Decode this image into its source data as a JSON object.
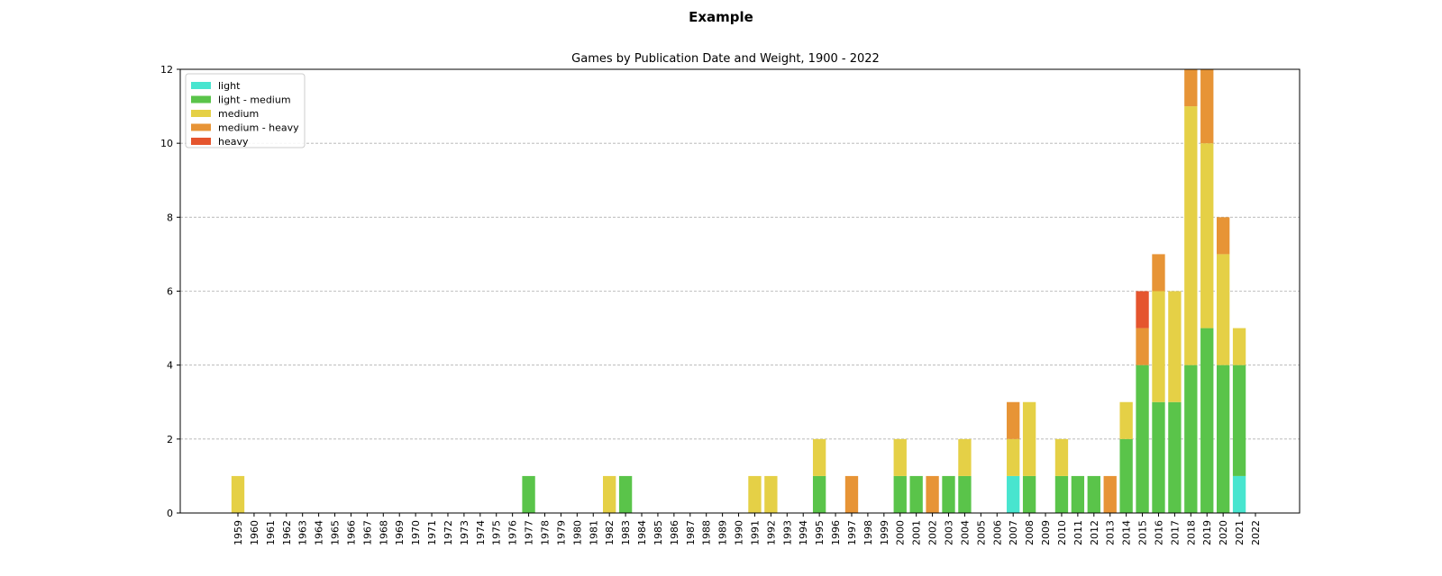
{
  "figure": {
    "suptitle": "Example"
  },
  "chart_data": {
    "type": "bar",
    "stacked": true,
    "title": "Games by Publication Date and Weight, 1900 - 2022",
    "xlabel": "",
    "ylabel": "",
    "ylim": [
      0,
      12
    ],
    "yticks": [
      0,
      2,
      4,
      6,
      8,
      10,
      12
    ],
    "grid": "y",
    "legend_position": "top-left",
    "categories": [
      "1959",
      "1960",
      "1961",
      "1962",
      "1963",
      "1964",
      "1965",
      "1966",
      "1967",
      "1968",
      "1969",
      "1970",
      "1971",
      "1972",
      "1973",
      "1974",
      "1975",
      "1976",
      "1977",
      "1978",
      "1979",
      "1980",
      "1981",
      "1982",
      "1983",
      "1984",
      "1985",
      "1986",
      "1987",
      "1988",
      "1989",
      "1990",
      "1991",
      "1992",
      "1993",
      "1994",
      "1995",
      "1996",
      "1997",
      "1998",
      "1999",
      "2000",
      "2001",
      "2002",
      "2003",
      "2004",
      "2005",
      "2006",
      "2007",
      "2008",
      "2009",
      "2010",
      "2011",
      "2012",
      "2013",
      "2014",
      "2015",
      "2016",
      "2017",
      "2018",
      "2019",
      "2020",
      "2021",
      "2022"
    ],
    "series": [
      {
        "name": "light",
        "color": "#48e5cf",
        "values": [
          0,
          0,
          0,
          0,
          0,
          0,
          0,
          0,
          0,
          0,
          0,
          0,
          0,
          0,
          0,
          0,
          0,
          0,
          0,
          0,
          0,
          0,
          0,
          0,
          0,
          0,
          0,
          0,
          0,
          0,
          0,
          0,
          0,
          0,
          0,
          0,
          0,
          0,
          0,
          0,
          0,
          0,
          0,
          0,
          0,
          0,
          0,
          0,
          1,
          0,
          0,
          0,
          0,
          0,
          0,
          0,
          0,
          0,
          0,
          0,
          0,
          0,
          1,
          0
        ]
      },
      {
        "name": "light - medium",
        "color": "#5ac44a",
        "values": [
          0,
          0,
          0,
          0,
          0,
          0,
          0,
          0,
          0,
          0,
          0,
          0,
          0,
          0,
          0,
          0,
          0,
          0,
          1,
          0,
          0,
          0,
          0,
          0,
          1,
          0,
          0,
          0,
          0,
          0,
          0,
          0,
          0,
          0,
          0,
          0,
          1,
          0,
          0,
          0,
          0,
          1,
          1,
          0,
          1,
          1,
          0,
          0,
          0,
          1,
          0,
          1,
          1,
          1,
          0,
          2,
          4,
          3,
          3,
          4,
          5,
          4,
          3,
          0
        ]
      },
      {
        "name": "medium",
        "color": "#e5d046",
        "values": [
          1,
          0,
          0,
          0,
          0,
          0,
          0,
          0,
          0,
          0,
          0,
          0,
          0,
          0,
          0,
          0,
          0,
          0,
          0,
          0,
          0,
          0,
          0,
          1,
          0,
          0,
          0,
          0,
          0,
          0,
          0,
          0,
          1,
          1,
          0,
          0,
          1,
          0,
          0,
          0,
          0,
          1,
          0,
          0,
          0,
          1,
          0,
          0,
          1,
          2,
          0,
          1,
          0,
          0,
          0,
          1,
          0,
          3,
          3,
          7,
          5,
          3,
          1,
          0
        ]
      },
      {
        "name": "medium - heavy",
        "color": "#e79436",
        "values": [
          0,
          0,
          0,
          0,
          0,
          0,
          0,
          0,
          0,
          0,
          0,
          0,
          0,
          0,
          0,
          0,
          0,
          0,
          0,
          0,
          0,
          0,
          0,
          0,
          0,
          0,
          0,
          0,
          0,
          0,
          0,
          0,
          0,
          0,
          0,
          0,
          0,
          0,
          1,
          0,
          0,
          0,
          0,
          1,
          0,
          0,
          0,
          0,
          1,
          0,
          0,
          0,
          0,
          0,
          1,
          0,
          1,
          1,
          0,
          1,
          2,
          1,
          0,
          0
        ]
      },
      {
        "name": "heavy",
        "color": "#e5552e",
        "values": [
          0,
          0,
          0,
          0,
          0,
          0,
          0,
          0,
          0,
          0,
          0,
          0,
          0,
          0,
          0,
          0,
          0,
          0,
          0,
          0,
          0,
          0,
          0,
          0,
          0,
          0,
          0,
          0,
          0,
          0,
          0,
          0,
          0,
          0,
          0,
          0,
          0,
          0,
          0,
          0,
          0,
          0,
          0,
          0,
          0,
          0,
          0,
          0,
          0,
          0,
          0,
          0,
          0,
          0,
          0,
          0,
          1,
          0,
          0,
          0,
          0,
          0,
          0,
          0
        ]
      }
    ]
  }
}
